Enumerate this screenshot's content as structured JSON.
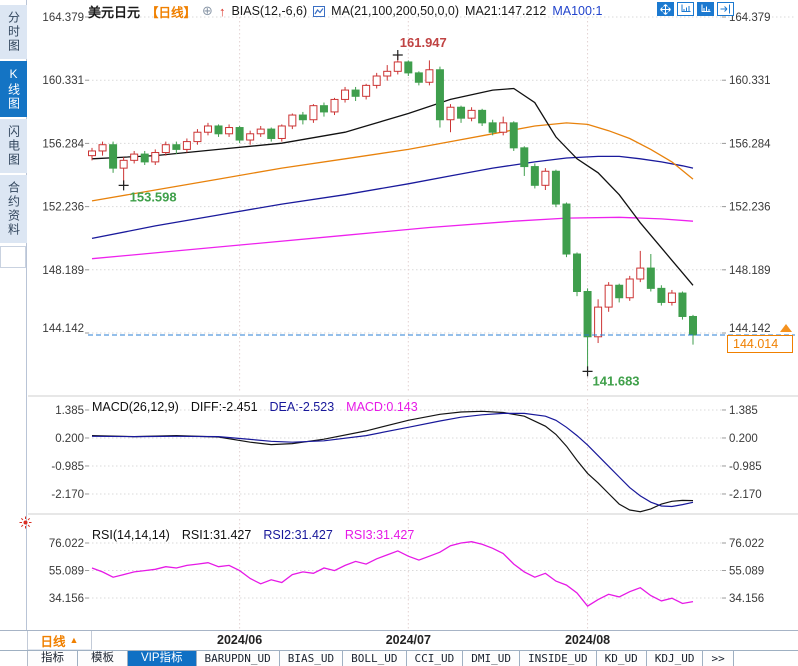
{
  "header": {
    "symbol": "美元日元",
    "period_tag": "【日线】",
    "bias_label": "BIAS(12,-6,6)",
    "ma_label": "MA(21,100,200,50,0,0)",
    "ma21_value": "MA21:147.212",
    "ma100_value": "MA100:1"
  },
  "sidebar": {
    "items": [
      {
        "label": "分时图",
        "active": false
      },
      {
        "label": "K线图",
        "active": true
      },
      {
        "label": "闪电图",
        "active": false
      },
      {
        "label": "合约资料",
        "active": false
      }
    ]
  },
  "macd_header": {
    "title": "MACD(26,12,9)",
    "diff": "DIFF:-2.451",
    "dea": "DEA:-2.523",
    "macd": "MACD:0.143"
  },
  "rsi_header": {
    "title": "RSI(14,14,14)",
    "rsi1": "RSI1:31.427",
    "rsi2": "RSI2:31.427",
    "rsi3": "RSI3:31.427"
  },
  "price_axis": [
    "164.379",
    "160.331",
    "156.284",
    "152.236",
    "148.189",
    "144.142"
  ],
  "macd_axis": [
    "1.385",
    "0.200",
    "-0.985",
    "-2.170"
  ],
  "rsi_axis": [
    "76.022",
    "55.089",
    "34.156"
  ],
  "current_price": {
    "value": "144.014"
  },
  "bottom": {
    "period_label": "日线",
    "period_arrow": "▲",
    "tabs": [
      {
        "label": "指标",
        "active": false
      },
      {
        "label": "模板",
        "active": false
      },
      {
        "label": "VIP指标",
        "active": true
      },
      {
        "label": "BARUPDN_UD",
        "active": false
      },
      {
        "label": "BIAS_UD",
        "active": false
      },
      {
        "label": "BOLL_UD",
        "active": false
      },
      {
        "label": "CCI_UD",
        "active": false
      },
      {
        "label": "DMI_UD",
        "active": false
      },
      {
        "label": "INSIDE_UD",
        "active": false
      },
      {
        "label": "KD_UD",
        "active": false
      },
      {
        "label": "KDJ_UD",
        "active": false
      },
      {
        "label": ">>",
        "active": false
      }
    ]
  },
  "colors": {
    "up": "#cc3434",
    "down": "#3f9e4d",
    "dashed_line": "#2a7fd4",
    "grid": "#d9d9d9",
    "month_grid": "#e3d2d2",
    "axis_text": "#3a3a3a",
    "high_label": "#c04343",
    "low_label": "#3fa04a",
    "accent_blue": "#1070c4",
    "orange": "#f08000",
    "diff": "#141414",
    "dea": "#18189a",
    "macd_value": "#e619e6",
    "rsi": "#e619e6",
    "separator": "#cfcfcf",
    "cross": "#222222"
  },
  "chart_data": [
    {
      "type": "candlestick",
      "title": "美元日元 日线 (USD/JPY daily)",
      "y_ticks": [
        164.379,
        160.331,
        156.284,
        152.236,
        148.189,
        144.142
      ],
      "month_marks": [
        {
          "index": 14,
          "label": "2024/06"
        },
        {
          "index": 30,
          "label": "2024/07"
        },
        {
          "index": 47,
          "label": "2024/08"
        }
      ],
      "current_price": 144.014,
      "annotations": {
        "high": {
          "index": 29,
          "price": 161.947,
          "label": "161.947"
        },
        "early_low": {
          "index": 3,
          "price": 153.598,
          "label": "153.598"
        },
        "low": {
          "index": 47,
          "price": 141.683,
          "label": "141.683"
        }
      },
      "candles": [
        [
          155.5,
          156.0,
          155.2,
          155.8
        ],
        [
          155.8,
          156.4,
          155.5,
          156.2
        ],
        [
          156.2,
          156.4,
          154.4,
          154.7
        ],
        [
          154.7,
          155.4,
          153.598,
          155.2
        ],
        [
          155.2,
          155.8,
          155.0,
          155.6
        ],
        [
          155.6,
          155.8,
          154.9,
          155.1
        ],
        [
          155.1,
          155.9,
          154.9,
          155.7
        ],
        [
          155.7,
          156.4,
          155.5,
          156.2
        ],
        [
          156.2,
          156.4,
          155.6,
          155.9
        ],
        [
          155.9,
          156.6,
          155.7,
          156.4
        ],
        [
          156.4,
          157.2,
          156.2,
          157.0
        ],
        [
          157.0,
          157.6,
          156.8,
          157.4
        ],
        [
          157.4,
          157.5,
          156.7,
          156.9
        ],
        [
          156.9,
          157.5,
          156.7,
          157.3
        ],
        [
          157.3,
          157.4,
          156.3,
          156.5
        ],
        [
          156.5,
          157.1,
          156.2,
          156.9
        ],
        [
          156.9,
          157.4,
          156.7,
          157.2
        ],
        [
          157.2,
          157.3,
          156.4,
          156.6
        ],
        [
          156.6,
          157.5,
          156.4,
          157.4
        ],
        [
          157.4,
          158.2,
          157.2,
          158.1
        ],
        [
          158.1,
          158.3,
          157.5,
          157.8
        ],
        [
          157.8,
          158.8,
          157.6,
          158.7
        ],
        [
          158.7,
          158.9,
          158.0,
          158.3
        ],
        [
          158.3,
          159.2,
          158.1,
          159.1
        ],
        [
          159.1,
          159.9,
          158.9,
          159.7
        ],
        [
          159.7,
          159.9,
          159.0,
          159.3
        ],
        [
          159.3,
          160.1,
          159.1,
          160.0
        ],
        [
          160.0,
          160.8,
          159.8,
          160.6
        ],
        [
          160.6,
          161.3,
          160.3,
          160.9
        ],
        [
          160.9,
          161.947,
          160.7,
          161.5
        ],
        [
          161.5,
          161.6,
          160.6,
          160.8
        ],
        [
          160.8,
          160.9,
          160.0,
          160.2
        ],
        [
          160.2,
          161.6,
          160.0,
          161.0
        ],
        [
          161.0,
          161.2,
          157.3,
          157.8
        ],
        [
          157.8,
          158.8,
          157.0,
          158.6
        ],
        [
          158.6,
          158.7,
          157.6,
          157.9
        ],
        [
          157.9,
          158.6,
          157.7,
          158.4
        ],
        [
          158.4,
          158.5,
          157.4,
          157.6
        ],
        [
          157.6,
          157.8,
          156.8,
          157.0
        ],
        [
          157.0,
          158.0,
          156.8,
          157.6
        ],
        [
          157.6,
          157.7,
          155.8,
          156.0
        ],
        [
          156.0,
          156.1,
          154.2,
          154.8
        ],
        [
          154.8,
          155.0,
          153.4,
          153.6
        ],
        [
          153.6,
          154.7,
          153.3,
          154.5
        ],
        [
          154.5,
          154.6,
          152.2,
          152.4
        ],
        [
          152.4,
          152.5,
          149.0,
          149.2
        ],
        [
          149.2,
          149.3,
          146.5,
          146.8
        ],
        [
          146.8,
          147.0,
          141.683,
          143.9
        ],
        [
          143.9,
          146.3,
          143.5,
          145.8
        ],
        [
          145.8,
          147.4,
          145.5,
          147.2
        ],
        [
          147.2,
          147.3,
          146.1,
          146.4
        ],
        [
          146.4,
          147.8,
          146.2,
          147.6
        ],
        [
          147.6,
          149.4,
          147.4,
          148.3
        ],
        [
          148.3,
          149.2,
          146.8,
          147.0
        ],
        [
          147.0,
          147.2,
          145.9,
          146.1
        ],
        [
          146.1,
          146.9,
          145.9,
          146.7
        ],
        [
          146.7,
          146.8,
          145.0,
          145.2
        ],
        [
          145.2,
          145.3,
          143.4,
          144.014
        ]
      ],
      "ma_series": [
        {
          "name": "MA200",
          "color": "#ee22ee",
          "points": [
            [
              0,
              148.9
            ],
            [
              8,
              149.4
            ],
            [
              16,
              149.9
            ],
            [
              24,
              150.4
            ],
            [
              32,
              150.9
            ],
            [
              40,
              151.3
            ],
            [
              45,
              151.5
            ],
            [
              50,
              151.55
            ],
            [
              54,
              151.45
            ],
            [
              57,
              151.3
            ]
          ]
        },
        {
          "name": "MA100",
          "color": "#1a1a9c",
          "points": [
            [
              0,
              150.2
            ],
            [
              6,
              151.0
            ],
            [
              12,
              151.7
            ],
            [
              18,
              152.4
            ],
            [
              24,
              153.0
            ],
            [
              30,
              153.7
            ],
            [
              34,
              154.2
            ],
            [
              38,
              154.7
            ],
            [
              42,
              155.1
            ],
            [
              45,
              155.35
            ],
            [
              48,
              155.45
            ],
            [
              50,
              155.45
            ],
            [
              52,
              155.3
            ],
            [
              54,
              155.1
            ],
            [
              56,
              154.85
            ],
            [
              57,
              154.7
            ]
          ]
        },
        {
          "name": "MA50",
          "color": "#e8820c",
          "points": [
            [
              0,
              152.6
            ],
            [
              6,
              153.3
            ],
            [
              12,
              154.0
            ],
            [
              18,
              154.7
            ],
            [
              24,
              155.3
            ],
            [
              30,
              155.9
            ],
            [
              34,
              156.4
            ],
            [
              38,
              156.9
            ],
            [
              42,
              157.4
            ],
            [
              45,
              157.6
            ],
            [
              47,
              157.5
            ],
            [
              49,
              157.1
            ],
            [
              51,
              156.6
            ],
            [
              53,
              155.9
            ],
            [
              55,
              155.1
            ],
            [
              57,
              154.0
            ]
          ]
        },
        {
          "name": "MA21",
          "color": "#111111",
          "points": [
            [
              0,
              155.3
            ],
            [
              6,
              155.5
            ],
            [
              12,
              155.9
            ],
            [
              18,
              156.3
            ],
            [
              24,
              157.0
            ],
            [
              30,
              158.2
            ],
            [
              34,
              159.1
            ],
            [
              38,
              159.7
            ],
            [
              40,
              159.8
            ],
            [
              42,
              158.9
            ],
            [
              44,
              156.7
            ],
            [
              46,
              155.3
            ],
            [
              48,
              154.4
            ],
            [
              50,
              153.0
            ],
            [
              52,
              151.2
            ],
            [
              54,
              149.6
            ],
            [
              55,
              148.8
            ],
            [
              56,
              148.0
            ],
            [
              57,
              147.2
            ]
          ]
        }
      ]
    },
    {
      "type": "bar",
      "name": "MACD",
      "y_ticks": [
        1.385,
        0.2,
        -0.985,
        -2.17
      ],
      "bars": [
        -0.25,
        -0.3,
        -0.35,
        -0.3,
        -0.25,
        -0.3,
        -0.25,
        -0.2,
        -0.25,
        -0.2,
        -0.1,
        -0.05,
        -0.15,
        -0.1,
        -0.3,
        -0.4,
        -0.35,
        -0.4,
        -0.25,
        -0.1,
        0.05,
        0.1,
        0.18,
        0.25,
        0.35,
        0.4,
        0.45,
        0.5,
        0.55,
        0.55,
        0.5,
        0.45,
        0.35,
        0.2,
        0.05,
        -0.15,
        -0.35,
        -0.6,
        -0.85,
        -1.1,
        -1.4,
        -1.6,
        -1.8,
        -2.0,
        -2.2,
        -2.3,
        -2.25,
        -2.1,
        -1.9,
        -1.7,
        -1.45,
        -1.15,
        -0.8,
        0.15,
        0.3,
        0.35,
        0.25,
        0.143
      ],
      "diff_points": [
        [
          0,
          0.3
        ],
        [
          4,
          0.26
        ],
        [
          8,
          0.3
        ],
        [
          12,
          0.24
        ],
        [
          15,
          0.02
        ],
        [
          17,
          -0.08
        ],
        [
          19,
          -0.04
        ],
        [
          22,
          0.15
        ],
        [
          26,
          0.5
        ],
        [
          30,
          0.95
        ],
        [
          33,
          1.2
        ],
        [
          35,
          1.3
        ],
        [
          37,
          1.33
        ],
        [
          39,
          1.28
        ],
        [
          41,
          1.12
        ],
        [
          43,
          0.7
        ],
        [
          44,
          0.35
        ],
        [
          45,
          -0.15
        ],
        [
          46,
          -0.75
        ],
        [
          47,
          -1.3
        ],
        [
          48,
          -1.7
        ],
        [
          49,
          -2.15
        ],
        [
          50,
          -2.6
        ],
        [
          51,
          -2.85
        ],
        [
          52,
          -2.92
        ],
        [
          53,
          -2.8
        ],
        [
          54,
          -2.6
        ],
        [
          55,
          -2.48
        ],
        [
          56,
          -2.44
        ],
        [
          57,
          -2.451
        ]
      ],
      "dea_points": [
        [
          0,
          0.27
        ],
        [
          4,
          0.26
        ],
        [
          8,
          0.27
        ],
        [
          12,
          0.26
        ],
        [
          15,
          0.14
        ],
        [
          17,
          0.06
        ],
        [
          19,
          0.02
        ],
        [
          22,
          0.08
        ],
        [
          26,
          0.3
        ],
        [
          30,
          0.65
        ],
        [
          33,
          0.92
        ],
        [
          35,
          1.08
        ],
        [
          37,
          1.18
        ],
        [
          39,
          1.24
        ],
        [
          41,
          1.24
        ],
        [
          43,
          1.12
        ],
        [
          44,
          0.95
        ],
        [
          45,
          0.65
        ],
        [
          46,
          0.3
        ],
        [
          47,
          -0.1
        ],
        [
          48,
          -0.55
        ],
        [
          49,
          -1.0
        ],
        [
          50,
          -1.45
        ],
        [
          51,
          -1.9
        ],
        [
          52,
          -2.25
        ],
        [
          53,
          -2.52
        ],
        [
          54,
          -2.68
        ],
        [
          55,
          -2.7
        ],
        [
          56,
          -2.62
        ],
        [
          57,
          -2.523
        ]
      ]
    },
    {
      "type": "line",
      "name": "RSI",
      "y_ticks": [
        76.022,
        55.089,
        34.156
      ],
      "values": [
        57,
        54,
        50,
        52,
        54,
        55,
        56,
        58,
        57,
        59,
        60,
        61,
        58,
        59,
        55,
        49,
        45,
        48,
        46,
        52,
        54,
        53,
        57,
        55,
        59,
        62,
        60,
        64,
        67,
        70,
        66,
        63,
        66,
        69,
        74,
        76,
        77,
        75,
        72,
        68,
        60,
        54,
        50,
        53,
        47,
        44,
        38,
        28,
        33,
        37,
        35,
        39,
        42,
        36,
        32,
        34,
        30,
        31.427
      ]
    }
  ]
}
